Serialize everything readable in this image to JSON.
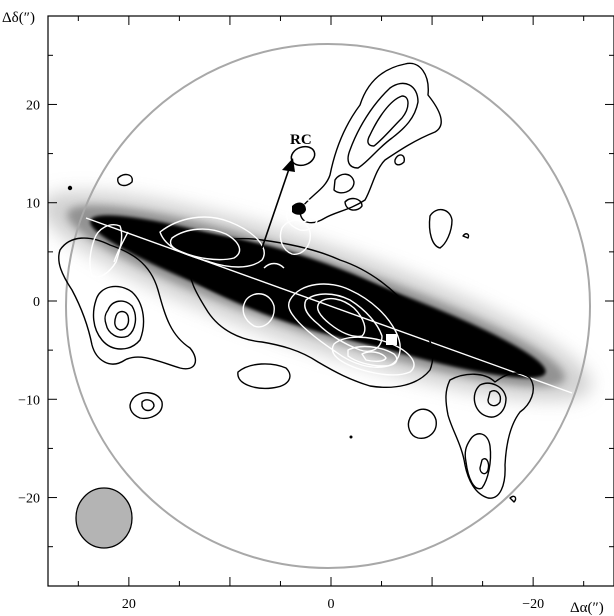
{
  "figure": {
    "x_axis_title": "Δα(″)",
    "y_axis_title": "Δδ(″)",
    "x_ticks": [
      {
        "value": 20,
        "label": "20"
      },
      {
        "value": 0,
        "label": "0"
      },
      {
        "value": -20,
        "label": "−20"
      }
    ],
    "y_ticks": [
      {
        "value": 20,
        "label": "20"
      },
      {
        "value": 10,
        "label": "10"
      },
      {
        "value": 0,
        "label": "0"
      },
      {
        "value": -10,
        "label": "−10"
      },
      {
        "value": -20,
        "label": "−20"
      }
    ],
    "x_range": [
      28,
      -28
    ],
    "y_range": [
      -29,
      29
    ],
    "annotation": {
      "label": "RC"
    },
    "colors": {
      "background": "#ffffff",
      "galaxy_core": "#050505",
      "galaxy_halo": "#9a9a9a",
      "black_contours": "#000000",
      "white_contours": "#ffffff",
      "field_circle": "#a8a8a8",
      "beam_fill": "#b4b4b4"
    }
  }
}
